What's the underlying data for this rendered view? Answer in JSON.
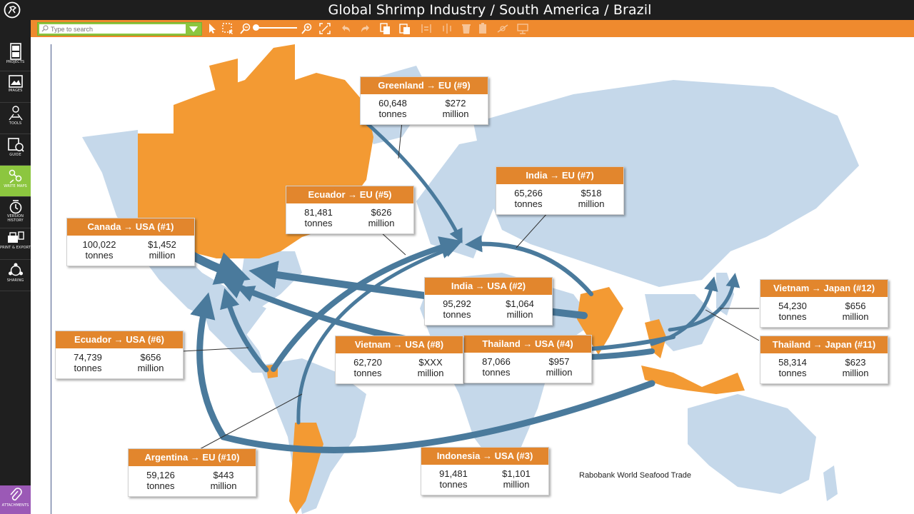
{
  "window": {
    "title": "Global Shrimp Industry / South America / Brazil"
  },
  "sidebar": {
    "items": [
      {
        "label": "PROJECTS",
        "icon": "projects-icon"
      },
      {
        "label": "IMAGES",
        "icon": "images-icon"
      },
      {
        "label": "TOOLS",
        "icon": "tools-icon"
      },
      {
        "label": "GUIDE",
        "icon": "guide-icon"
      },
      {
        "label": "WRITE MAPS",
        "icon": "write-maps-icon"
      },
      {
        "label": "VERSION HISTORY",
        "icon": "version-history-icon"
      },
      {
        "label": "PRINT & EXPORT",
        "icon": "print-export-icon"
      },
      {
        "label": "SHARING",
        "icon": "sharing-icon"
      }
    ],
    "attachments_label": "ATTACHMENTS",
    "active_color": "#8cc63f",
    "attachments_color": "#9b59b6"
  },
  "toolbar": {
    "search_placeholder": "Type to search",
    "accent_color": "#ef8a2e"
  },
  "map": {
    "land_color": "#c5d8ea",
    "highlight_color": "#f39a33",
    "arrow_color": "#4a7a9c",
    "source": "Rabobank World Seafood Trade",
    "callouts": [
      {
        "route": "Canada → USA (#1)",
        "volume": "100,022",
        "volume_unit": "tonnes",
        "value": "$1,452",
        "value_unit": "million"
      },
      {
        "route": "India → USA (#2)",
        "volume": "95,292",
        "volume_unit": "tonnes",
        "value": "$1,064",
        "value_unit": "million"
      },
      {
        "route": "Indonesia → USA (#3)",
        "volume": "91,481",
        "volume_unit": "tonnes",
        "value": "$1,101",
        "value_unit": "million"
      },
      {
        "route": "Thailand → USA (#4)",
        "volume": "87,066",
        "volume_unit": "tonnes",
        "value": "$957",
        "value_unit": "million"
      },
      {
        "route": "Ecuador → EU (#5)",
        "volume": "81,481",
        "volume_unit": "tonnes",
        "value": "$626",
        "value_unit": "million"
      },
      {
        "route": "Ecuador → USA (#6)",
        "volume": "74,739",
        "volume_unit": "tonnes",
        "value": "$656",
        "value_unit": "million"
      },
      {
        "route": "India → EU (#7)",
        "volume": "65,266",
        "volume_unit": "tonnes",
        "value": "$518",
        "value_unit": "million"
      },
      {
        "route": "Vietnam → USA (#8)",
        "volume": "62,720",
        "volume_unit": "tonnes",
        "value": "$XXX",
        "value_unit": "million"
      },
      {
        "route": "Greenland → EU (#9)",
        "volume": "60,648",
        "volume_unit": "tonnes",
        "value": "$272",
        "value_unit": "million"
      },
      {
        "route": "Argentina → EU (#10)",
        "volume": "59,126",
        "volume_unit": "tonnes",
        "value": "$443",
        "value_unit": "million"
      },
      {
        "route": "Thailand → Japan (#11)",
        "volume": "58,314",
        "volume_unit": "tonnes",
        "value": "$623",
        "value_unit": "million"
      },
      {
        "route": "Vietnam → Japan (#12)",
        "volume": "54,230",
        "volume_unit": "tonnes",
        "value": "$656",
        "value_unit": "million"
      }
    ]
  }
}
